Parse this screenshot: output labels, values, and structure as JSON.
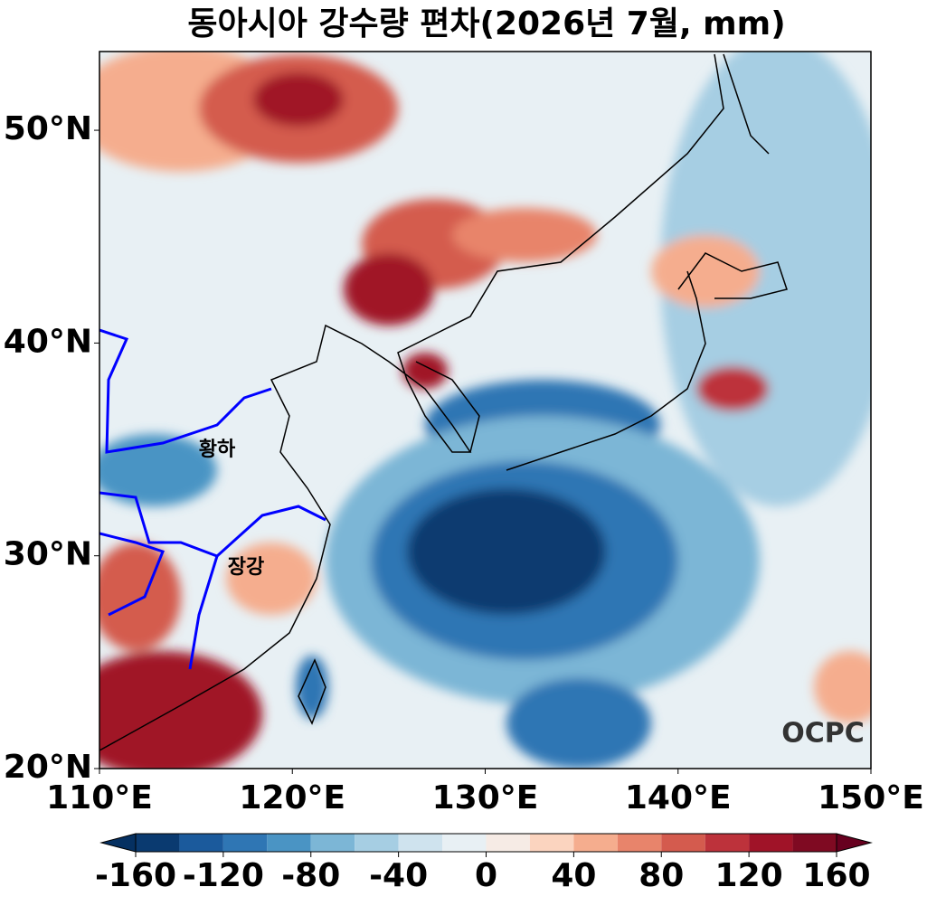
{
  "title": "동아시아 강수량 편차(2026년 7월, mm)",
  "map": {
    "xlim": [
      110,
      150
    ],
    "ylim": [
      20,
      53.7
    ],
    "xticks": [
      {
        "value": 110,
        "label": "110°E"
      },
      {
        "value": 120,
        "label": "120°E"
      },
      {
        "value": 130,
        "label": "130°E"
      },
      {
        "value": 140,
        "label": "140°E"
      },
      {
        "value": 150,
        "label": "150°E"
      }
    ],
    "yticks": [
      {
        "value": 20,
        "label": "20°N"
      },
      {
        "value": 30,
        "label": "30°N"
      },
      {
        "value": 40,
        "label": "40°N"
      },
      {
        "value": 50,
        "label": "50°N"
      }
    ],
    "rivers": [
      "황하",
      "장강"
    ],
    "logo": "OCPC"
  },
  "colorbar": {
    "levels": [
      -160,
      -140,
      -120,
      -100,
      -80,
      -60,
      -40,
      -20,
      0,
      20,
      40,
      60,
      80,
      100,
      120,
      140,
      160
    ],
    "colors": [
      "#0a3a70",
      "#1b5a9c",
      "#2f76b4",
      "#4a94c4",
      "#7cb6d6",
      "#a6cee3",
      "#cfe3ee",
      "#e8f0f4",
      "#f6ebe5",
      "#fbd4bf",
      "#f5ad8e",
      "#e8846b",
      "#d45b4e",
      "#bd323b",
      "#a01328",
      "#7f0a22"
    ],
    "extend_colors": [
      "#053061",
      "#67001f"
    ],
    "ticks": [
      -160,
      -120,
      -80,
      -40,
      0,
      40,
      80,
      120,
      160
    ]
  }
}
